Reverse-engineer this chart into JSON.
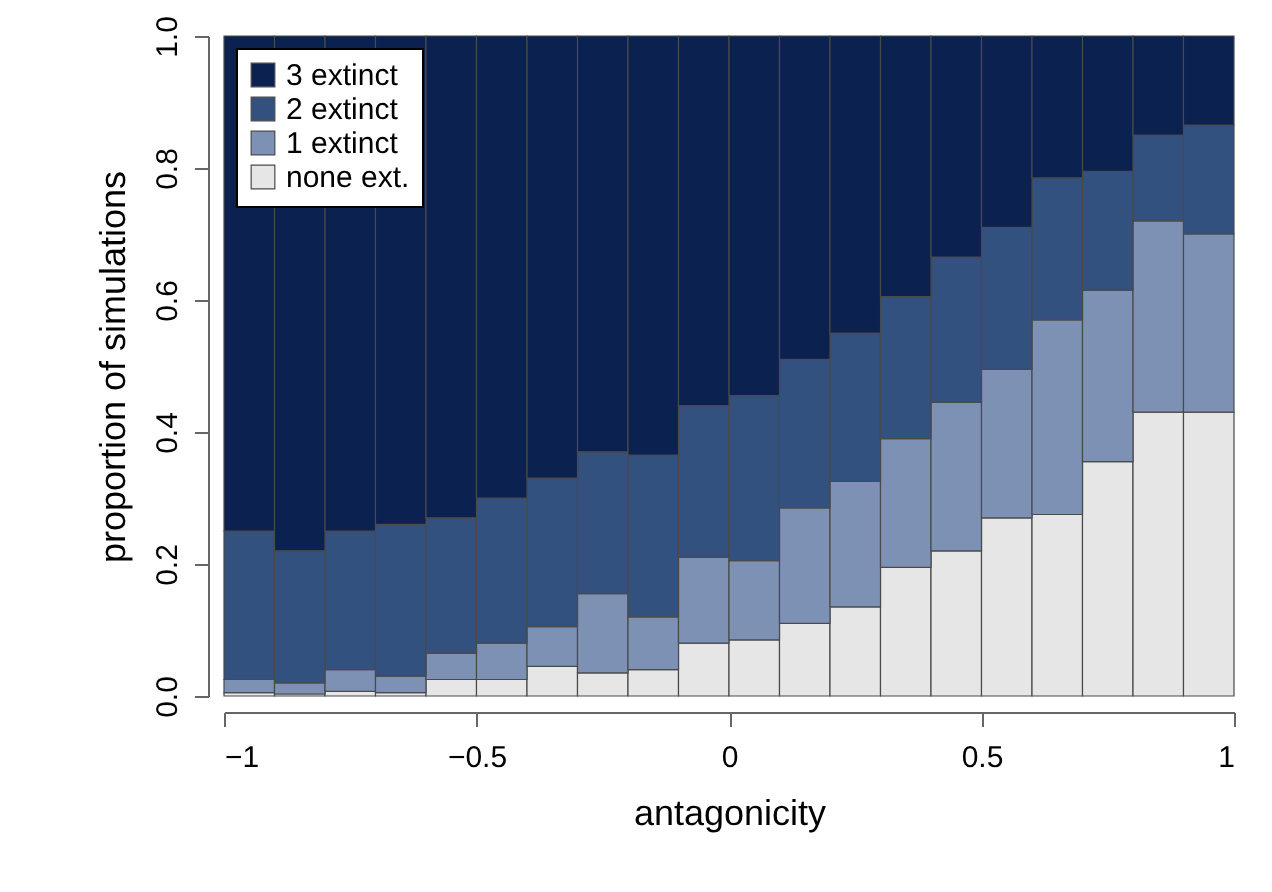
{
  "chart_data": {
    "type": "bar",
    "xlabel": "antagonicity",
    "ylabel": "proportion of simulations",
    "x": [
      -0.95,
      -0.85,
      -0.75,
      -0.65,
      -0.55,
      -0.45,
      -0.35,
      -0.25,
      -0.15,
      -0.05,
      0.05,
      0.15,
      0.25,
      0.35,
      0.45,
      0.55,
      0.65,
      0.75,
      0.85,
      0.95
    ],
    "stacked": true,
    "series": [
      {
        "name": "none ext.",
        "color": "#e6e6e6",
        "values": [
          0.005,
          0.003,
          0.007,
          0.005,
          0.025,
          0.025,
          0.045,
          0.035,
          0.04,
          0.08,
          0.085,
          0.11,
          0.135,
          0.195,
          0.22,
          0.27,
          0.275,
          0.355,
          0.43,
          0.43
        ]
      },
      {
        "name": "1 extinct",
        "color": "#7d91b4",
        "values": [
          0.02,
          0.017,
          0.033,
          0.025,
          0.04,
          0.055,
          0.06,
          0.12,
          0.08,
          0.13,
          0.12,
          0.175,
          0.19,
          0.195,
          0.225,
          0.225,
          0.295,
          0.26,
          0.29,
          0.27
        ]
      },
      {
        "name": "2 extinct",
        "color": "#33517e",
        "values": [
          0.225,
          0.2,
          0.21,
          0.23,
          0.205,
          0.22,
          0.225,
          0.215,
          0.245,
          0.23,
          0.25,
          0.225,
          0.225,
          0.215,
          0.22,
          0.215,
          0.215,
          0.18,
          0.13,
          0.165
        ]
      },
      {
        "name": "3 extinct",
        "color": "#0b2150",
        "values": [
          0.75,
          0.78,
          0.75,
          0.74,
          0.73,
          0.7,
          0.67,
          0.63,
          0.635,
          0.56,
          0.545,
          0.49,
          0.45,
          0.395,
          0.335,
          0.29,
          0.215,
          0.205,
          0.15,
          0.135
        ]
      }
    ],
    "xlim": [
      -1,
      1
    ],
    "xticks": [
      {
        "value": -1,
        "label": "−1"
      },
      {
        "value": -0.5,
        "label": "−0.5"
      },
      0,
      0.5,
      1
    ],
    "ylim": [
      0,
      1
    ],
    "yticks": [
      {
        "value": 0,
        "label": "0.0"
      },
      {
        "value": 0.2,
        "label": "0.2"
      },
      {
        "value": 0.4,
        "label": "0.4"
      },
      {
        "value": 0.6,
        "label": "0.6"
      },
      {
        "value": 0.8,
        "label": "0.8"
      },
      {
        "value": 1,
        "label": "1.0"
      }
    ],
    "legend": "top left"
  }
}
